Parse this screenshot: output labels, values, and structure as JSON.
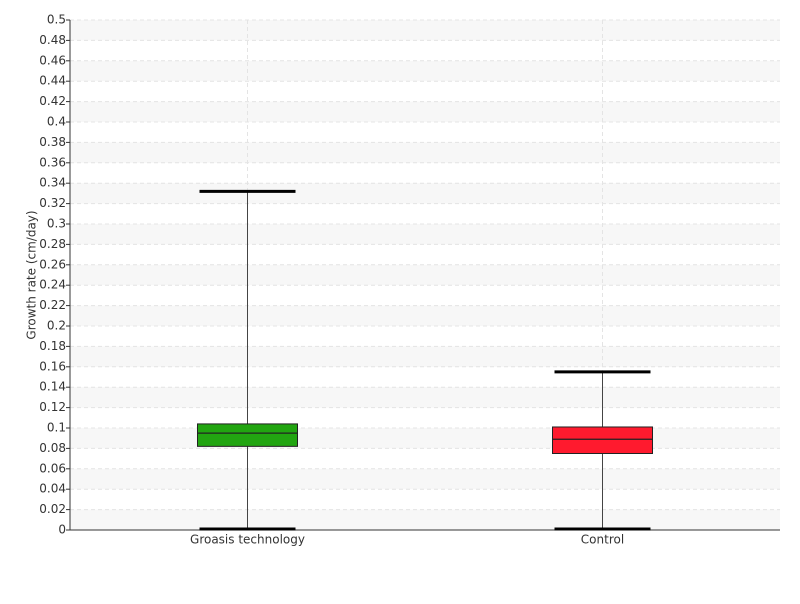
{
  "chart_data": {
    "type": "box",
    "y_label": "Growth rate (cm/day)",
    "categories": [
      "Groasis technology",
      "Control"
    ],
    "boxes": [
      {
        "whisker_low": 0,
        "q1": 0.082,
        "median": 0.095,
        "q3": 0.104,
        "whisker_high": 0.332,
        "color": "#22a511"
      },
      {
        "whisker_low": 0,
        "q1": 0.075,
        "median": 0.089,
        "q3": 0.101,
        "whisker_high": 0.155,
        "color": "#ff1a2e"
      }
    ],
    "ylim": [
      0,
      0.5
    ],
    "yticks": [
      0,
      0.02,
      0.04,
      0.06,
      0.08,
      0.1,
      0.12,
      0.14,
      0.16,
      0.18,
      0.2,
      0.22,
      0.24,
      0.26,
      0.28,
      0.3,
      0.32,
      0.34,
      0.36,
      0.38,
      0.4,
      0.42,
      0.44,
      0.46,
      0.48,
      0.5
    ],
    "grid": true
  }
}
